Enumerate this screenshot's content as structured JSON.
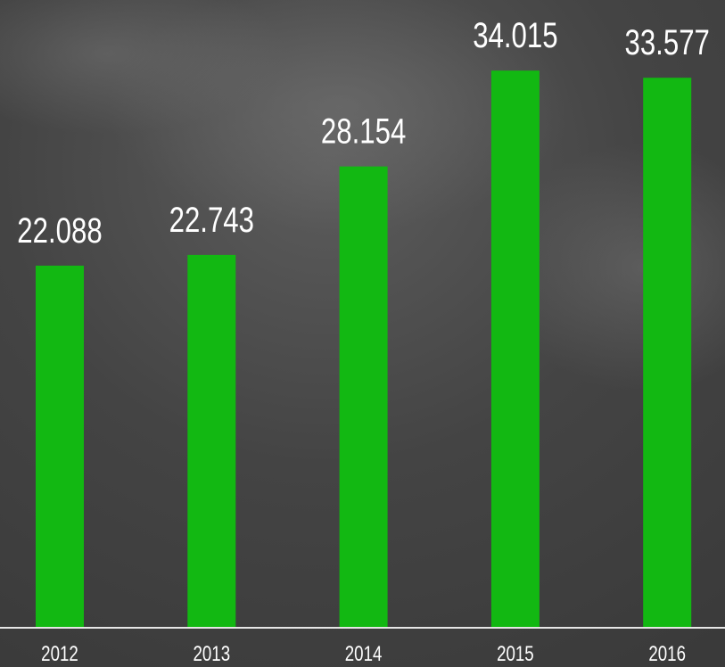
{
  "chart_data": {
    "type": "bar",
    "categories": [
      "2012",
      "2013",
      "2014",
      "2015",
      "2016"
    ],
    "values": [
      22.088,
      22.743,
      28.154,
      34.015,
      33.577
    ],
    "color": "#12b812"
  }
}
